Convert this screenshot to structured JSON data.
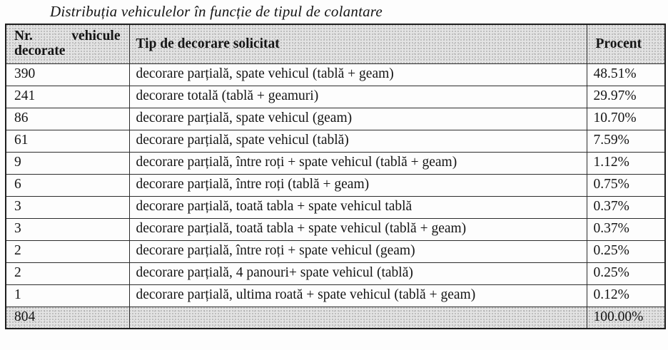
{
  "title": "Distribuția vehiculelor în funcție de tipul de colantare",
  "table": {
    "headers": {
      "col1": "Nr. vehicule decorate",
      "col2": "Tip de decorare solicitat",
      "col3": "Procent"
    },
    "rows": [
      {
        "count": "390",
        "label": "decorare parțială, spate vehicul (tablă + geam)",
        "percent": "48.51%"
      },
      {
        "count": "241",
        "label": "decorare totală (tablă + geamuri)",
        "percent": "29.97%"
      },
      {
        "count": "86",
        "label": "decorare parțială, spate vehicul (geam)",
        "percent": "10.70%"
      },
      {
        "count": "61",
        "label": "decorare parțială, spate vehicul (tablă)",
        "percent": "7.59%"
      },
      {
        "count": "9",
        "label": "decorare parțială, între roți + spate vehicul (tablă + geam)",
        "percent": "1.12%"
      },
      {
        "count": "6",
        "label": "decorare parțială, între roți (tablă + geam)",
        "percent": "0.75%"
      },
      {
        "count": "3",
        "label": "decorare parțială, toată tabla + spate vehicul tablă",
        "percent": "0.37%"
      },
      {
        "count": "3",
        "label": "decorare parțială, toată tabla + spate vehicul (tablă + geam)",
        "percent": "0.37%"
      },
      {
        "count": "2",
        "label": "decorare parțială, între roți + spate vehicul (geam)",
        "percent": "0.25%"
      },
      {
        "count": "2",
        "label": "decorare parțială, 4 panouri+ spate vehicul (tablă)",
        "percent": "0.25%"
      },
      {
        "count": "1",
        "label": "decorare parțială, ultima roată + spate vehicul (tablă + geam)",
        "percent": "0.12%"
      }
    ],
    "total": {
      "count": "804",
      "percent": "100.00%"
    }
  }
}
